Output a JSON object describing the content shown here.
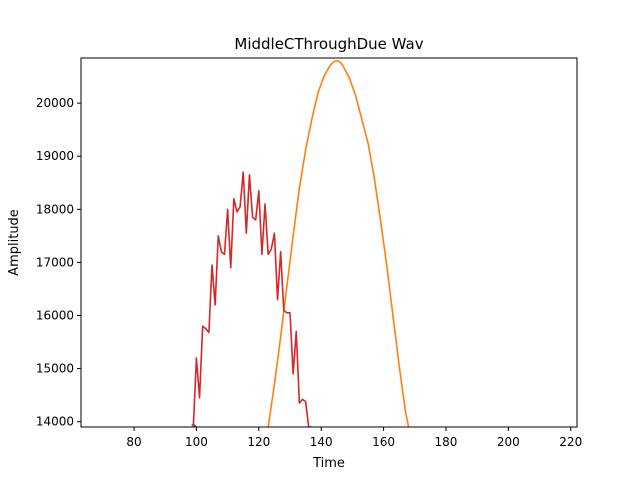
{
  "chart_data": {
    "type": "line",
    "title": "MiddleCThroughDue Wav",
    "xlabel": "Time",
    "ylabel": "Amplitude",
    "xlim": [
      63,
      222
    ],
    "ylim": [
      13900,
      20850
    ],
    "xticks": [
      80,
      100,
      120,
      140,
      160,
      180,
      200,
      220
    ],
    "yticks": [
      14000,
      15000,
      16000,
      17000,
      18000,
      19000,
      20000
    ],
    "grid": false,
    "series": [
      {
        "color": "#1f77b4",
        "x": [
          99,
          100
        ],
        "y": [
          13950,
          13900
        ]
      },
      {
        "color": "#ff7f0e",
        "x": [
          123,
          125,
          127,
          129,
          131,
          133,
          135,
          137,
          139,
          141,
          143,
          144,
          145,
          146,
          147,
          149,
          151,
          153,
          155,
          157,
          159,
          161,
          163,
          165,
          167,
          168
        ],
        "y": [
          13900,
          14700,
          15600,
          16550,
          17500,
          18400,
          19120,
          19700,
          20200,
          20520,
          20720,
          20780,
          20800,
          20780,
          20700,
          20480,
          20150,
          19700,
          19250,
          18600,
          17800,
          16950,
          16000,
          15050,
          14200,
          13900
        ]
      },
      {
        "color": "#d62728",
        "x": [
          99,
          100,
          101,
          102,
          103,
          104,
          105,
          106,
          107,
          108,
          109,
          110,
          111,
          112,
          113,
          114,
          115,
          116,
          117,
          118,
          119,
          120,
          121,
          122,
          123,
          124,
          125,
          126,
          127,
          128,
          129,
          130,
          131,
          132,
          133,
          134,
          135,
          136,
          137
        ],
        "y": [
          13900,
          15200,
          14450,
          15800,
          15750,
          15680,
          16950,
          16200,
          17500,
          17200,
          17150,
          18000,
          16900,
          18200,
          17950,
          18050,
          18700,
          17550,
          18650,
          17850,
          17800,
          18350,
          17150,
          18100,
          17150,
          17250,
          17550,
          16300,
          17200,
          16100,
          16050,
          16050,
          14900,
          15700,
          14350,
          14420,
          14380,
          13900,
          13900
        ]
      },
      {
        "color": "#8c564b",
        "x": [
          98.5,
          99.5
        ],
        "y": [
          13950,
          13900
        ]
      }
    ]
  }
}
